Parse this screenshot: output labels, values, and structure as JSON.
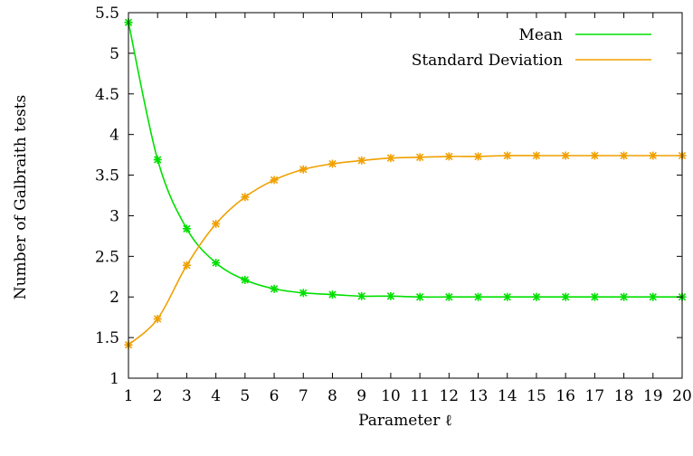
{
  "chart_data": {
    "type": "line",
    "title": "",
    "xlabel": "Parameter ℓ",
    "ylabel": "Number of Galbraith tests",
    "xlim": [
      1,
      20
    ],
    "ylim": [
      1,
      5.5
    ],
    "xticks": [
      "1",
      "2",
      "3",
      "4",
      "5",
      "6",
      "7",
      "8",
      "9",
      "10",
      "11",
      "12",
      "13",
      "14",
      "15",
      "16",
      "17",
      "18",
      "19",
      "20"
    ],
    "yticks": [
      "1",
      "1.5",
      "2",
      "2.5",
      "3",
      "3.5",
      "4",
      "4.5",
      "5",
      "5.5"
    ],
    "grid": false,
    "legend_position": "top-right",
    "x": [
      1,
      2,
      3,
      4,
      5,
      6,
      7,
      8,
      9,
      10,
      11,
      12,
      13,
      14,
      15,
      16,
      17,
      18,
      19,
      20
    ],
    "series": [
      {
        "name": "Mean",
        "color": "#00e000",
        "marker": "asterisk",
        "values": [
          5.38,
          3.69,
          2.84,
          2.42,
          2.21,
          2.1,
          2.05,
          2.03,
          2.01,
          2.01,
          2.0,
          2.0,
          2.0,
          2.0,
          2.0,
          2.0,
          2.0,
          2.0,
          2.0,
          2.0
        ]
      },
      {
        "name": "Standard Deviation",
        "color": "#f0a000",
        "marker": "asterisk",
        "values": [
          1.41,
          1.73,
          2.39,
          2.9,
          3.23,
          3.44,
          3.57,
          3.64,
          3.68,
          3.71,
          3.72,
          3.73,
          3.73,
          3.74,
          3.74,
          3.74,
          3.74,
          3.74,
          3.74,
          3.74
        ]
      }
    ]
  }
}
